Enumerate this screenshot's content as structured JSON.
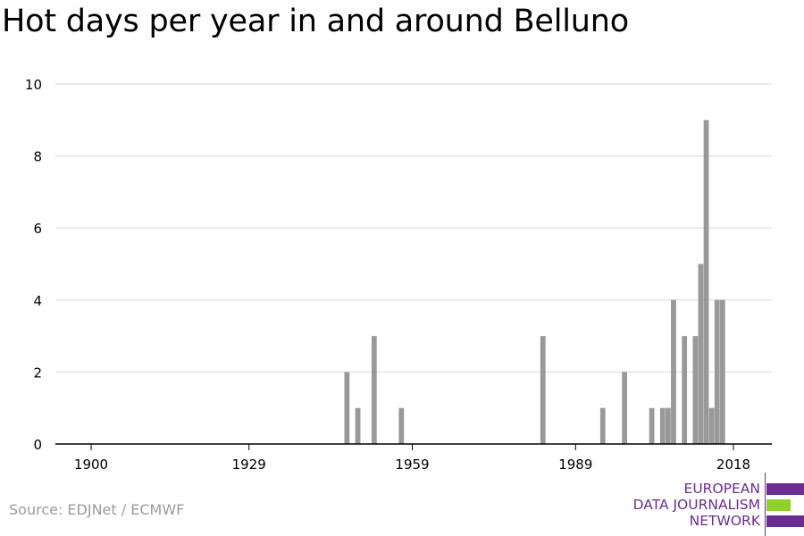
{
  "title": "Hot days per year in and around Belluno",
  "source": "Source: EDJNet / ECMWF",
  "logo": {
    "lines": [
      "EUROPEAN",
      "DATA JOURNALISM",
      "NETWORK"
    ],
    "colors": {
      "purple": "#6b2c91",
      "green": "#8fd02a"
    }
  },
  "colors": {
    "bar": "#999999",
    "grid": "#d9d9d9",
    "axis": "#000000",
    "text": "#000000"
  },
  "chart_data": {
    "type": "bar",
    "title": "Hot days per year in and around Belluno",
    "xlabel": "",
    "ylabel": "",
    "xlim": [
      1900,
      2018
    ],
    "ylim": [
      0,
      10
    ],
    "x_ticks": [
      1900,
      1929,
      1959,
      1989,
      2018
    ],
    "y_ticks": [
      0,
      2,
      4,
      6,
      8,
      10
    ],
    "grid": true,
    "x": [
      1947,
      1949,
      1952,
      1957,
      1983,
      1994,
      1998,
      2003,
      2005,
      2006,
      2007,
      2009,
      2011,
      2012,
      2013,
      2014,
      2015,
      2016
    ],
    "values": [
      2,
      1,
      3,
      1,
      3,
      1,
      2,
      1,
      1,
      1,
      4,
      3,
      3,
      5,
      9,
      1,
      4,
      4
    ]
  }
}
